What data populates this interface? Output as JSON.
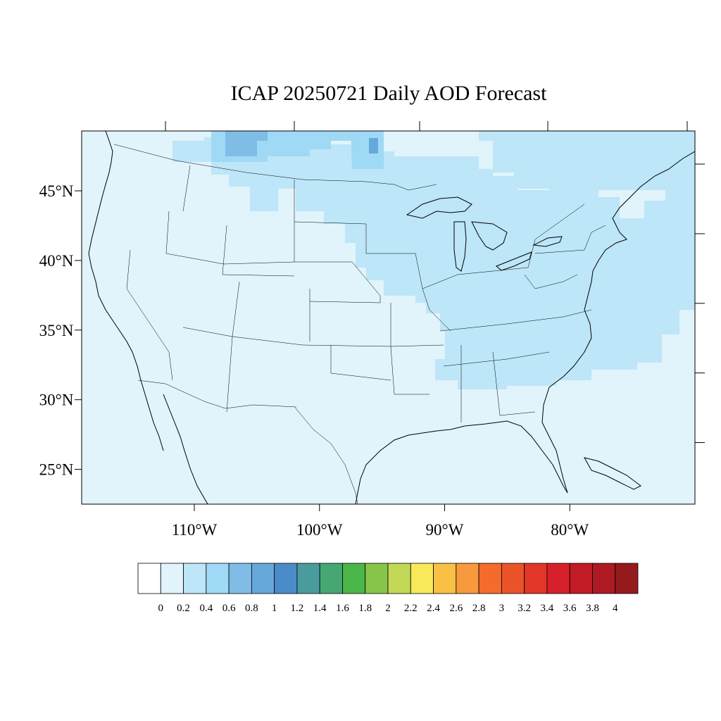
{
  "title": "ICAP 20250721 Daily AOD Forecast",
  "map": {
    "lon_range": [
      -119,
      -70
    ],
    "lat_range": [
      22.5,
      49.3
    ],
    "lat_labels": [
      "45°N",
      "40°N",
      "35°N",
      "30°N",
      "25°N"
    ],
    "lat_values": [
      45,
      40,
      35,
      30,
      25
    ],
    "lon_labels": [
      "110°W",
      "100°W",
      "90°W",
      "80°W"
    ],
    "lon_values": [
      -110,
      -100,
      -90,
      -80
    ],
    "background_color": "#e1f3fb"
  },
  "colorbar": {
    "colors": [
      "#ffffff",
      "#e1f3fb",
      "#bde6f8",
      "#9fd9f6",
      "#80bde6",
      "#67a8db",
      "#4a8cca",
      "#4a9c9c",
      "#46a774",
      "#4ab648",
      "#86c54a",
      "#c3d856",
      "#f7e95a",
      "#f8c146",
      "#f7993c",
      "#f46b2c",
      "#ea5329",
      "#e13628",
      "#d7202a",
      "#c11b26",
      "#ad1a24",
      "#951a1d"
    ],
    "labels": [
      "0",
      "0.2",
      "0.4",
      "0.6",
      "0.8",
      "1",
      "1.2",
      "1.4",
      "1.6",
      "1.8",
      "2",
      "2.2",
      "2.4",
      "2.6",
      "2.8",
      "3",
      "3.2",
      "3.4",
      "3.6",
      "3.8",
      "4"
    ]
  },
  "aod_shading": {
    "levels": [
      "0.2-0.4",
      "0.4-0.6",
      "0.6-0.8"
    ],
    "level_colors": [
      "#bde6f8",
      "#9fd9f6",
      "#80bde6"
    ]
  }
}
